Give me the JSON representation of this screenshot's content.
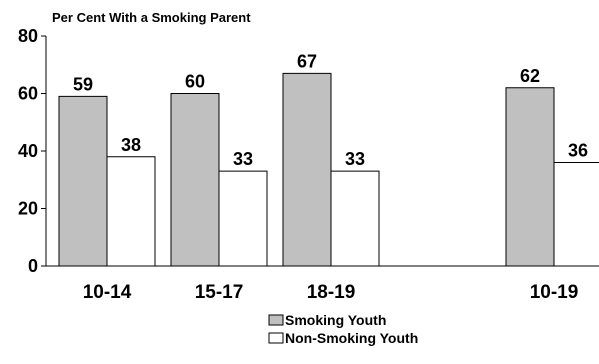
{
  "chart_data": {
    "type": "bar",
    "title": "Per Cent With a Smoking Parent",
    "categories": [
      "10-14",
      "15-17",
      "18-19",
      "10-19"
    ],
    "series": [
      {
        "name": "Smoking Youth",
        "values": [
          59,
          60,
          67,
          62
        ],
        "color": "#c0c0c0"
      },
      {
        "name": "Non-Smoking Youth",
        "values": [
          38,
          33,
          33,
          36
        ],
        "color": "#ffffff"
      }
    ],
    "ylim": [
      0,
      80
    ],
    "yticks": [
      "0",
      "20",
      "40",
      "60",
      "80"
    ],
    "grid": false,
    "legend_position": "bottom"
  }
}
